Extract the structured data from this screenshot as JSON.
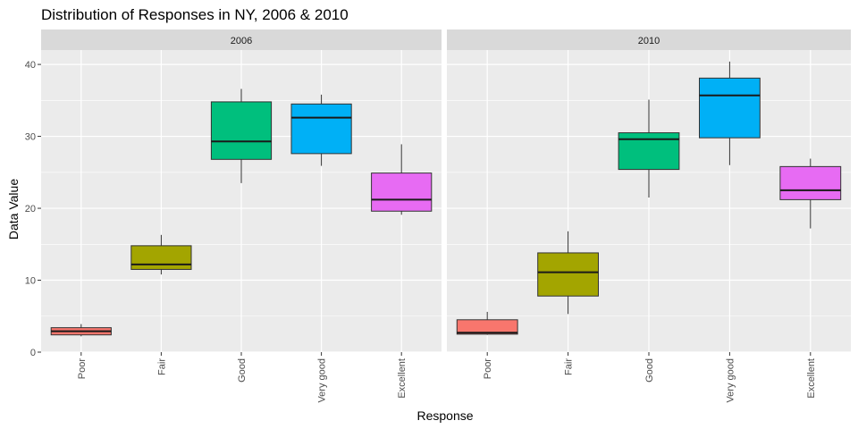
{
  "chart_data": {
    "type": "boxplot",
    "title": "Distribution of Responses in NY, 2006 & 2010",
    "xlabel": "Response",
    "ylabel": "Data Value",
    "ylim": [
      0,
      42
    ],
    "yticks": [
      0,
      10,
      20,
      30,
      40
    ],
    "categories": [
      "Poor",
      "Fair",
      "Good",
      "Very good",
      "Excellent"
    ],
    "colors": {
      "Poor": "#F8766D",
      "Fair": "#A3A500",
      "Good": "#00BF7D",
      "Very good": "#00B0F6",
      "Excellent": "#E76BF3"
    },
    "panel_background": "#EBEBEB",
    "strip_background": "#D9D9D9",
    "grid": true,
    "legend": "none",
    "facets": [
      {
        "label": "2006",
        "boxes": [
          {
            "category": "Poor",
            "min": 2.2,
            "q1": 2.4,
            "median": 2.9,
            "q3": 3.4,
            "max": 3.9
          },
          {
            "category": "Fair",
            "min": 10.8,
            "q1": 11.5,
            "median": 12.2,
            "q3": 14.8,
            "max": 16.3
          },
          {
            "category": "Good",
            "min": 23.5,
            "q1": 26.8,
            "median": 29.3,
            "q3": 34.8,
            "max": 36.6
          },
          {
            "category": "Very good",
            "min": 25.9,
            "q1": 27.6,
            "median": 32.6,
            "q3": 34.5,
            "max": 35.8
          },
          {
            "category": "Excellent",
            "min": 19.1,
            "q1": 19.6,
            "median": 21.2,
            "q3": 24.9,
            "max": 28.9
          }
        ]
      },
      {
        "label": "2010",
        "boxes": [
          {
            "category": "Poor",
            "min": 2.4,
            "q1": 2.5,
            "median": 2.7,
            "q3": 4.5,
            "max": 5.6
          },
          {
            "category": "Fair",
            "min": 5.3,
            "q1": 7.8,
            "median": 11.1,
            "q3": 13.8,
            "max": 16.8
          },
          {
            "category": "Good",
            "min": 21.5,
            "q1": 25.4,
            "median": 29.6,
            "q3": 30.5,
            "max": 35.1
          },
          {
            "category": "Very good",
            "min": 26.0,
            "q1": 29.8,
            "median": 35.7,
            "q3": 38.1,
            "max": 40.4
          },
          {
            "category": "Excellent",
            "min": 17.2,
            "q1": 21.2,
            "median": 22.5,
            "q3": 25.8,
            "max": 26.9
          }
        ]
      }
    ]
  }
}
